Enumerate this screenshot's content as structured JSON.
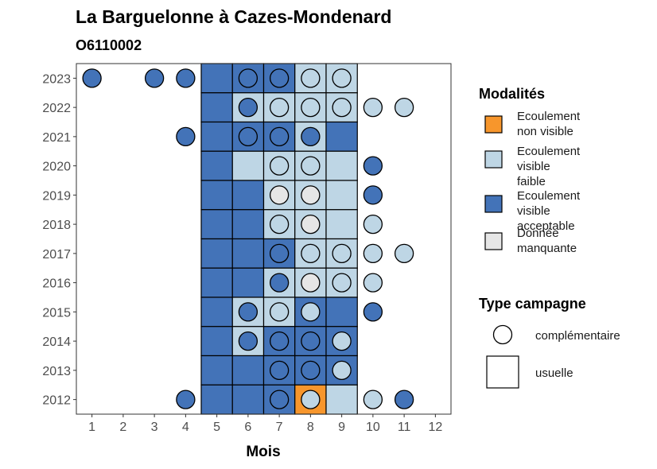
{
  "chart_data": {
    "type": "heatmap",
    "title": "La Barguelonne à Cazes-Mondenard",
    "subtitle": "O6110002",
    "xlabel": "Mois",
    "ylabel": "",
    "x_ticks": [
      1,
      2,
      3,
      4,
      5,
      6,
      7,
      8,
      9,
      10,
      11,
      12
    ],
    "y_ticks": [
      2023,
      2022,
      2021,
      2020,
      2019,
      2018,
      2017,
      2016,
      2015,
      2014,
      2013,
      2012
    ],
    "xlim": [
      0.5,
      12.5
    ],
    "legend_modalites": {
      "title": "Modalités",
      "items": [
        {
          "key": "nv",
          "label": [
            "Ecoulement",
            "non visible"
          ],
          "color": "#F7962C"
        },
        {
          "key": "vf",
          "label": [
            "Ecoulement",
            "visible",
            "faible"
          ],
          "color": "#BED6E5"
        },
        {
          "key": "va",
          "label": [
            "Ecoulement",
            "visible",
            "acceptable"
          ],
          "color": "#4373B8"
        },
        {
          "key": "dm",
          "label": [
            "Donnée",
            "manquante"
          ],
          "color": "#E6E6E6"
        }
      ]
    },
    "legend_campagne": {
      "title": "Type campagne",
      "items": [
        {
          "key": "c",
          "label": "complémentaire",
          "shape": "circle"
        },
        {
          "key": "u",
          "label": "usuelle",
          "shape": "square"
        }
      ]
    },
    "usuelle": [
      {
        "year": 2023,
        "cells": [
          [
            5,
            "va"
          ],
          [
            6,
            "va"
          ],
          [
            7,
            "va"
          ],
          [
            8,
            "vf"
          ],
          [
            9,
            "vf"
          ]
        ]
      },
      {
        "year": 2022,
        "cells": [
          [
            5,
            "va"
          ],
          [
            6,
            "vf"
          ],
          [
            7,
            "vf"
          ],
          [
            8,
            "vf"
          ],
          [
            9,
            "vf"
          ]
        ]
      },
      {
        "year": 2021,
        "cells": [
          [
            5,
            "va"
          ],
          [
            6,
            "va"
          ],
          [
            7,
            "va"
          ],
          [
            8,
            "vf"
          ],
          [
            9,
            "va"
          ]
        ]
      },
      {
        "year": 2020,
        "cells": [
          [
            5,
            "va"
          ],
          [
            6,
            "vf"
          ],
          [
            7,
            "vf"
          ],
          [
            8,
            "vf"
          ],
          [
            9,
            "vf"
          ]
        ]
      },
      {
        "year": 2019,
        "cells": [
          [
            5,
            "va"
          ],
          [
            6,
            "va"
          ],
          [
            7,
            "vf"
          ],
          [
            8,
            "vf"
          ],
          [
            9,
            "vf"
          ]
        ]
      },
      {
        "year": 2018,
        "cells": [
          [
            5,
            "va"
          ],
          [
            6,
            "va"
          ],
          [
            7,
            "vf"
          ],
          [
            8,
            "vf"
          ],
          [
            9,
            "vf"
          ]
        ]
      },
      {
        "year": 2017,
        "cells": [
          [
            5,
            "va"
          ],
          [
            6,
            "va"
          ],
          [
            7,
            "va"
          ],
          [
            8,
            "vf"
          ],
          [
            9,
            "vf"
          ]
        ]
      },
      {
        "year": 2016,
        "cells": [
          [
            5,
            "va"
          ],
          [
            6,
            "va"
          ],
          [
            7,
            "vf"
          ],
          [
            8,
            "vf"
          ],
          [
            9,
            "vf"
          ]
        ]
      },
      {
        "year": 2015,
        "cells": [
          [
            5,
            "va"
          ],
          [
            6,
            "vf"
          ],
          [
            7,
            "vf"
          ],
          [
            8,
            "va"
          ],
          [
            9,
            "va"
          ]
        ]
      },
      {
        "year": 2014,
        "cells": [
          [
            5,
            "va"
          ],
          [
            6,
            "vf"
          ],
          [
            7,
            "va"
          ],
          [
            8,
            "va"
          ],
          [
            9,
            "va"
          ]
        ]
      },
      {
        "year": 2013,
        "cells": [
          [
            5,
            "va"
          ],
          [
            6,
            "va"
          ],
          [
            7,
            "va"
          ],
          [
            8,
            "va"
          ],
          [
            9,
            "va"
          ]
        ]
      },
      {
        "year": 2012,
        "cells": [
          [
            5,
            "va"
          ],
          [
            6,
            "va"
          ],
          [
            7,
            "va"
          ],
          [
            8,
            "nv"
          ],
          [
            9,
            "vf"
          ]
        ]
      }
    ],
    "complementaire": [
      {
        "year": 2023,
        "points": [
          [
            1,
            "va"
          ],
          [
            3,
            "va"
          ],
          [
            4,
            "va"
          ],
          [
            6,
            "va"
          ],
          [
            7,
            "va"
          ],
          [
            8,
            "vf"
          ],
          [
            9,
            "vf"
          ]
        ]
      },
      {
        "year": 2022,
        "points": [
          [
            6,
            "va"
          ],
          [
            7,
            "vf"
          ],
          [
            8,
            "vf"
          ],
          [
            9,
            "vf"
          ],
          [
            10,
            "vf"
          ],
          [
            11,
            "vf"
          ]
        ]
      },
      {
        "year": 2021,
        "points": [
          [
            4,
            "va"
          ],
          [
            6,
            "va"
          ],
          [
            7,
            "va"
          ],
          [
            8,
            "va"
          ]
        ]
      },
      {
        "year": 2020,
        "points": [
          [
            7,
            "vf"
          ],
          [
            8,
            "vf"
          ],
          [
            10,
            "va"
          ]
        ]
      },
      {
        "year": 2019,
        "points": [
          [
            7,
            "dm"
          ],
          [
            8,
            "dm"
          ],
          [
            10,
            "va"
          ]
        ]
      },
      {
        "year": 2018,
        "points": [
          [
            7,
            "vf"
          ],
          [
            8,
            "dm"
          ],
          [
            10,
            "vf"
          ]
        ]
      },
      {
        "year": 2017,
        "points": [
          [
            7,
            "va"
          ],
          [
            8,
            "vf"
          ],
          [
            9,
            "vf"
          ],
          [
            10,
            "vf"
          ],
          [
            11,
            "vf"
          ]
        ]
      },
      {
        "year": 2016,
        "points": [
          [
            7,
            "va"
          ],
          [
            8,
            "dm"
          ],
          [
            9,
            "vf"
          ],
          [
            10,
            "vf"
          ]
        ]
      },
      {
        "year": 2015,
        "points": [
          [
            6,
            "va"
          ],
          [
            7,
            "vf"
          ],
          [
            8,
            "vf"
          ],
          [
            10,
            "va"
          ]
        ]
      },
      {
        "year": 2014,
        "points": [
          [
            6,
            "va"
          ],
          [
            7,
            "va"
          ],
          [
            8,
            "va"
          ],
          [
            9,
            "vf"
          ]
        ]
      },
      {
        "year": 2013,
        "points": [
          [
            7,
            "va"
          ],
          [
            8,
            "va"
          ],
          [
            9,
            "vf"
          ]
        ]
      },
      {
        "year": 2012,
        "points": [
          [
            4,
            "va"
          ],
          [
            7,
            "va"
          ],
          [
            8,
            "vf"
          ],
          [
            10,
            "vf"
          ],
          [
            11,
            "va"
          ]
        ]
      }
    ]
  }
}
